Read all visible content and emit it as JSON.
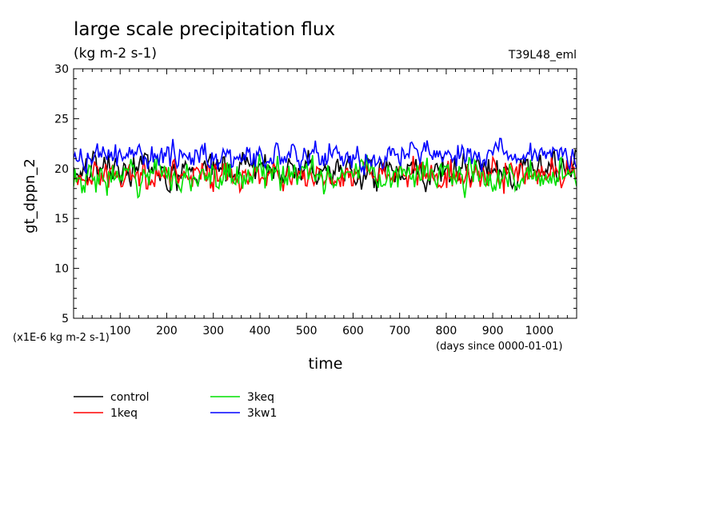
{
  "chart_data": {
    "type": "line",
    "title": "large scale precipitation flux",
    "subtitle": "(kg m-2 s-1)",
    "annotation": "T39L48_eml",
    "xlabel": "time",
    "ylabel": "gt_dppn_2",
    "y_unit_note": "(x1E-6 kg m-2 s-1)",
    "x_unit_note": "(days since 0000-01-01)",
    "xlim": [
      0,
      1080
    ],
    "ylim": [
      5,
      30
    ],
    "x_ticks": [
      100,
      200,
      300,
      400,
      500,
      600,
      700,
      800,
      900,
      1000
    ],
    "y_ticks": [
      5,
      10,
      15,
      20,
      25,
      30
    ],
    "grid": false,
    "legend_position": "bottom-left",
    "sample_interval_days": 3,
    "series": [
      {
        "name": "control",
        "color": "#000000",
        "mean": 19.8,
        "amplitude": 2.2,
        "min": 15.3,
        "max": 23.3,
        "seed": 11
      },
      {
        "name": "1keq",
        "color": "#ff0000",
        "mean": 19.4,
        "amplitude": 2.1,
        "min": 14.6,
        "max": 23.2,
        "seed": 23
      },
      {
        "name": "3keq",
        "color": "#00e000",
        "mean": 19.3,
        "amplitude": 2.2,
        "min": 15.5,
        "max": 23.8,
        "seed": 37
      },
      {
        "name": "3kw1",
        "color": "#0000ff",
        "mean": 21.3,
        "amplitude": 1.9,
        "min": 17.5,
        "max": 26.2,
        "seed": 53
      }
    ]
  }
}
